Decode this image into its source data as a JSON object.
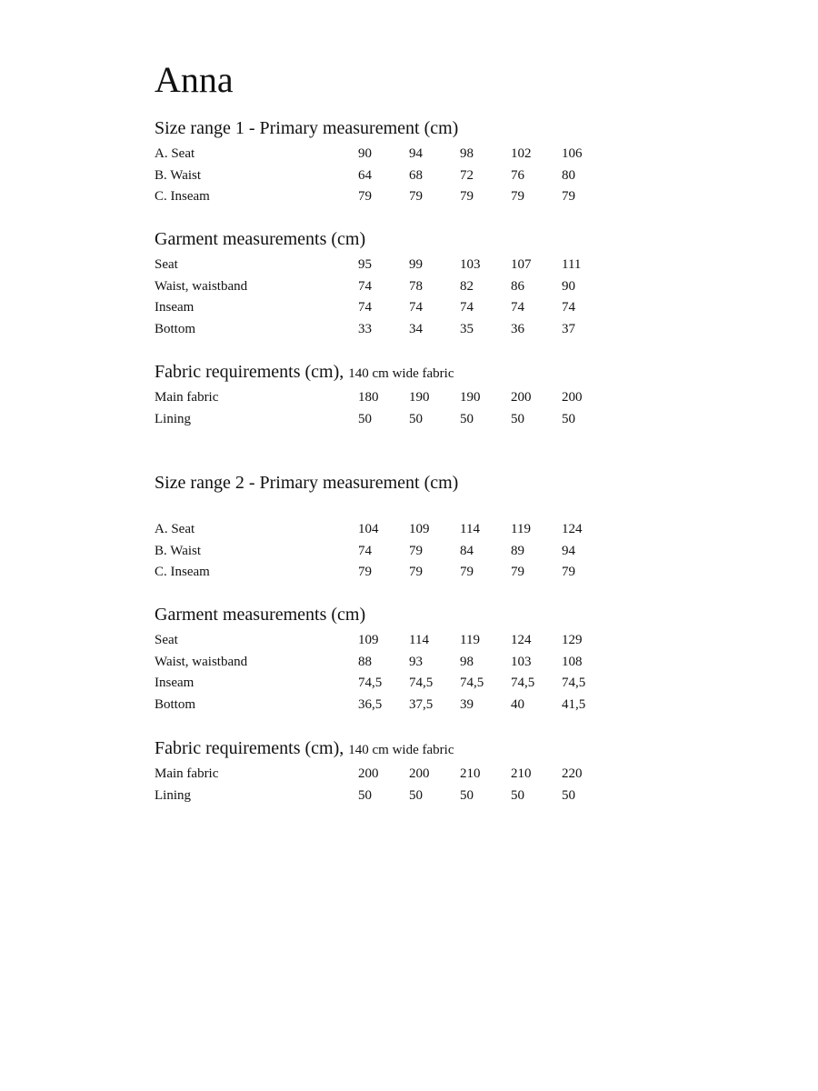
{
  "title": "Anna",
  "sections": [
    {
      "heading": "Size range 1 - Primary measurement (cm)",
      "sub": "",
      "rows": [
        {
          "label": "A. Seat",
          "values": [
            "90",
            "94",
            "98",
            "102",
            "106"
          ]
        },
        {
          "label": "B. Waist",
          "values": [
            "64",
            "68",
            "72",
            "76",
            "80"
          ]
        },
        {
          "label": "C. Inseam",
          "values": [
            "79",
            "79",
            "79",
            "79",
            "79"
          ]
        }
      ]
    },
    {
      "heading": "Garment measurements (cm)",
      "sub": "",
      "rows": [
        {
          "label": "Seat",
          "values": [
            "95",
            "99",
            "103",
            "107",
            "111"
          ]
        },
        {
          "label": "Waist, waistband",
          "values": [
            "74",
            "78",
            "82",
            "86",
            "90"
          ]
        },
        {
          "label": "Inseam",
          "values": [
            "74",
            "74",
            "74",
            "74",
            "74"
          ]
        },
        {
          "label": "Bottom",
          "values": [
            "33",
            "34",
            "35",
            "36",
            "37"
          ]
        }
      ]
    },
    {
      "heading": "Fabric requirements (cm),",
      "sub": "140 cm wide fabric",
      "rows": [
        {
          "label": "Main fabric",
          "values": [
            "180",
            "190",
            "190",
            "200",
            "200"
          ]
        },
        {
          "label": "Lining",
          "values": [
            "50",
            "50",
            "50",
            "50",
            "50"
          ]
        }
      ]
    },
    {
      "heading": "Size range 2 - Primary measurement (cm)",
      "sub": "",
      "rows": [
        {
          "label": "A. Seat",
          "values": [
            "104",
            "109",
            "114",
            "119",
            "124"
          ]
        },
        {
          "label": "B. Waist",
          "values": [
            "74",
            "79",
            "84",
            "89",
            "94"
          ]
        },
        {
          "label": "C. Inseam",
          "values": [
            "79",
            "79",
            "79",
            "79",
            "79"
          ]
        }
      ]
    },
    {
      "heading": "Garment measurements (cm)",
      "sub": "",
      "rows": [
        {
          "label": "Seat",
          "values": [
            "109",
            "114",
            "119",
            "124",
            "129"
          ]
        },
        {
          "label": "Waist, waistband",
          "values": [
            "88",
            "93",
            "98",
            "103",
            "108"
          ]
        },
        {
          "label": "Inseam",
          "values": [
            "74,5",
            "74,5",
            "74,5",
            "74,5",
            "74,5"
          ]
        },
        {
          "label": "Bottom",
          "values": [
            "36,5",
            "37,5",
            "39",
            "40",
            "41,5"
          ]
        }
      ]
    },
    {
      "heading": "Fabric requirements (cm),",
      "sub": "140 cm wide fabric",
      "rows": [
        {
          "label": "Main fabric",
          "values": [
            "200",
            "200",
            "210",
            "210",
            "220"
          ]
        },
        {
          "label": "Lining",
          "values": [
            "50",
            "50",
            "50",
            "50",
            "50"
          ]
        }
      ]
    }
  ]
}
